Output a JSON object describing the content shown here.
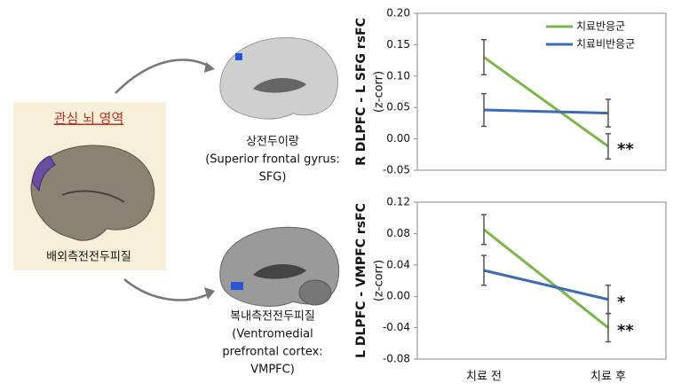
{
  "region_panel": {
    "title": "관심 뇌 영역",
    "label": "배외측전전두피질"
  },
  "brain_regions": [
    {
      "caption": [
        "상전두이랑",
        "(Superior frontal gyrus:",
        "SFG)"
      ]
    },
    {
      "caption": [
        "복내측전전두피질",
        "(Ventromedial",
        "prefrontal cortex:",
        "VMPFC)"
      ]
    }
  ],
  "chart_data": [
    {
      "type": "line",
      "y_label": [
        "R DLPFC - L SFG rsFC",
        "(z-corr)"
      ],
      "categories": [
        null,
        null
      ],
      "ylim": [
        -0.05,
        0.2
      ],
      "yticks": [
        {
          "value": -0.05,
          "label": "-0.05"
        },
        {
          "value": 0,
          "label": "0.00"
        },
        {
          "value": 0.05,
          "label": "0.05"
        },
        {
          "value": 0.1,
          "label": "0.10"
        },
        {
          "value": 0.15,
          "label": "0.15"
        },
        {
          "value": 0.2,
          "label": "0.20"
        }
      ],
      "legend": "top-right",
      "series": [
        {
          "name": "치료반응군",
          "color": "#7ab648",
          "values": [
            0.13,
            -0.012
          ],
          "errors": [
            0.028,
            0.02
          ],
          "annotation": "**"
        },
        {
          "name": "치료비반응군",
          "color": "#3a6db5",
          "values": [
            0.046,
            0.041
          ],
          "errors": [
            0.026,
            0.022
          ]
        }
      ]
    },
    {
      "type": "line",
      "y_label": [
        "L DLPFC - VMPFC rsFC",
        "(z-corr)"
      ],
      "categories": [
        "치료 전",
        "치료 후"
      ],
      "ylim": [
        -0.08,
        0.12
      ],
      "yticks": [
        {
          "value": -0.08,
          "label": "-0.08"
        },
        {
          "value": -0.04,
          "label": "-0.04"
        },
        {
          "value": 0,
          "label": "0.00"
        },
        {
          "value": 0.04,
          "label": "0.04"
        },
        {
          "value": 0.08,
          "label": "0.08"
        },
        {
          "value": 0.12,
          "label": "0.12"
        }
      ],
      "series": [
        {
          "color": "#7ab648",
          "values": [
            0.085,
            -0.04
          ],
          "errors": [
            0.019,
            0.018
          ],
          "annotation": "**"
        },
        {
          "color": "#3a6db5",
          "values": [
            0.033,
            -0.004
          ],
          "errors": [
            0.019,
            0.018
          ],
          "annotation": "*"
        }
      ]
    }
  ]
}
